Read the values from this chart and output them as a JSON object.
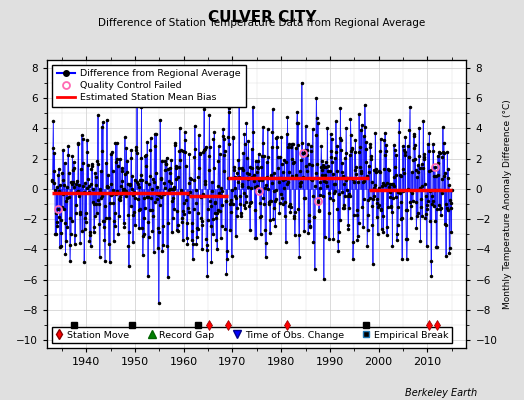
{
  "title": "CULVER CITY",
  "subtitle": "Difference of Station Temperature Data from Regional Average",
  "ylabel": "Monthly Temperature Anomaly Difference (°C)",
  "credit": "Berkeley Earth",
  "ylim": [
    -10.5,
    8.5
  ],
  "yticks": [
    -10,
    -8,
    -6,
    -4,
    -2,
    0,
    2,
    4,
    6,
    8
  ],
  "xlim": [
    1932,
    2018
  ],
  "start_year": 1933,
  "end_year": 2015,
  "seed": 42,
  "bias_segments": [
    {
      "x_start": 1933,
      "x_end": 1961,
      "bias": -0.3
    },
    {
      "x_start": 1961,
      "x_end": 1969,
      "bias": -0.5
    },
    {
      "x_start": 1969,
      "x_end": 1998,
      "bias": 0.7
    },
    {
      "x_start": 1998,
      "x_end": 2015,
      "bias": -0.1
    }
  ],
  "station_moves": [
    1965.3,
    1969.0,
    1981.3,
    2010.3,
    2012.0
  ],
  "empirical_breaks": [
    1937.5,
    1949.5,
    1963.0,
    1997.5
  ],
  "qc_failed": [
    1934.2,
    1975.5,
    1984.5,
    1987.5,
    2011.5
  ],
  "marker_y": -9.0,
  "line_color": "#0000ff",
  "dot_color": "#000000",
  "bias_color": "#ff0000",
  "qc_color": "#ff69b4",
  "fill_color": "#aaaaff",
  "background_color": "#e0e0e0",
  "plot_bg_color": "#ffffff"
}
